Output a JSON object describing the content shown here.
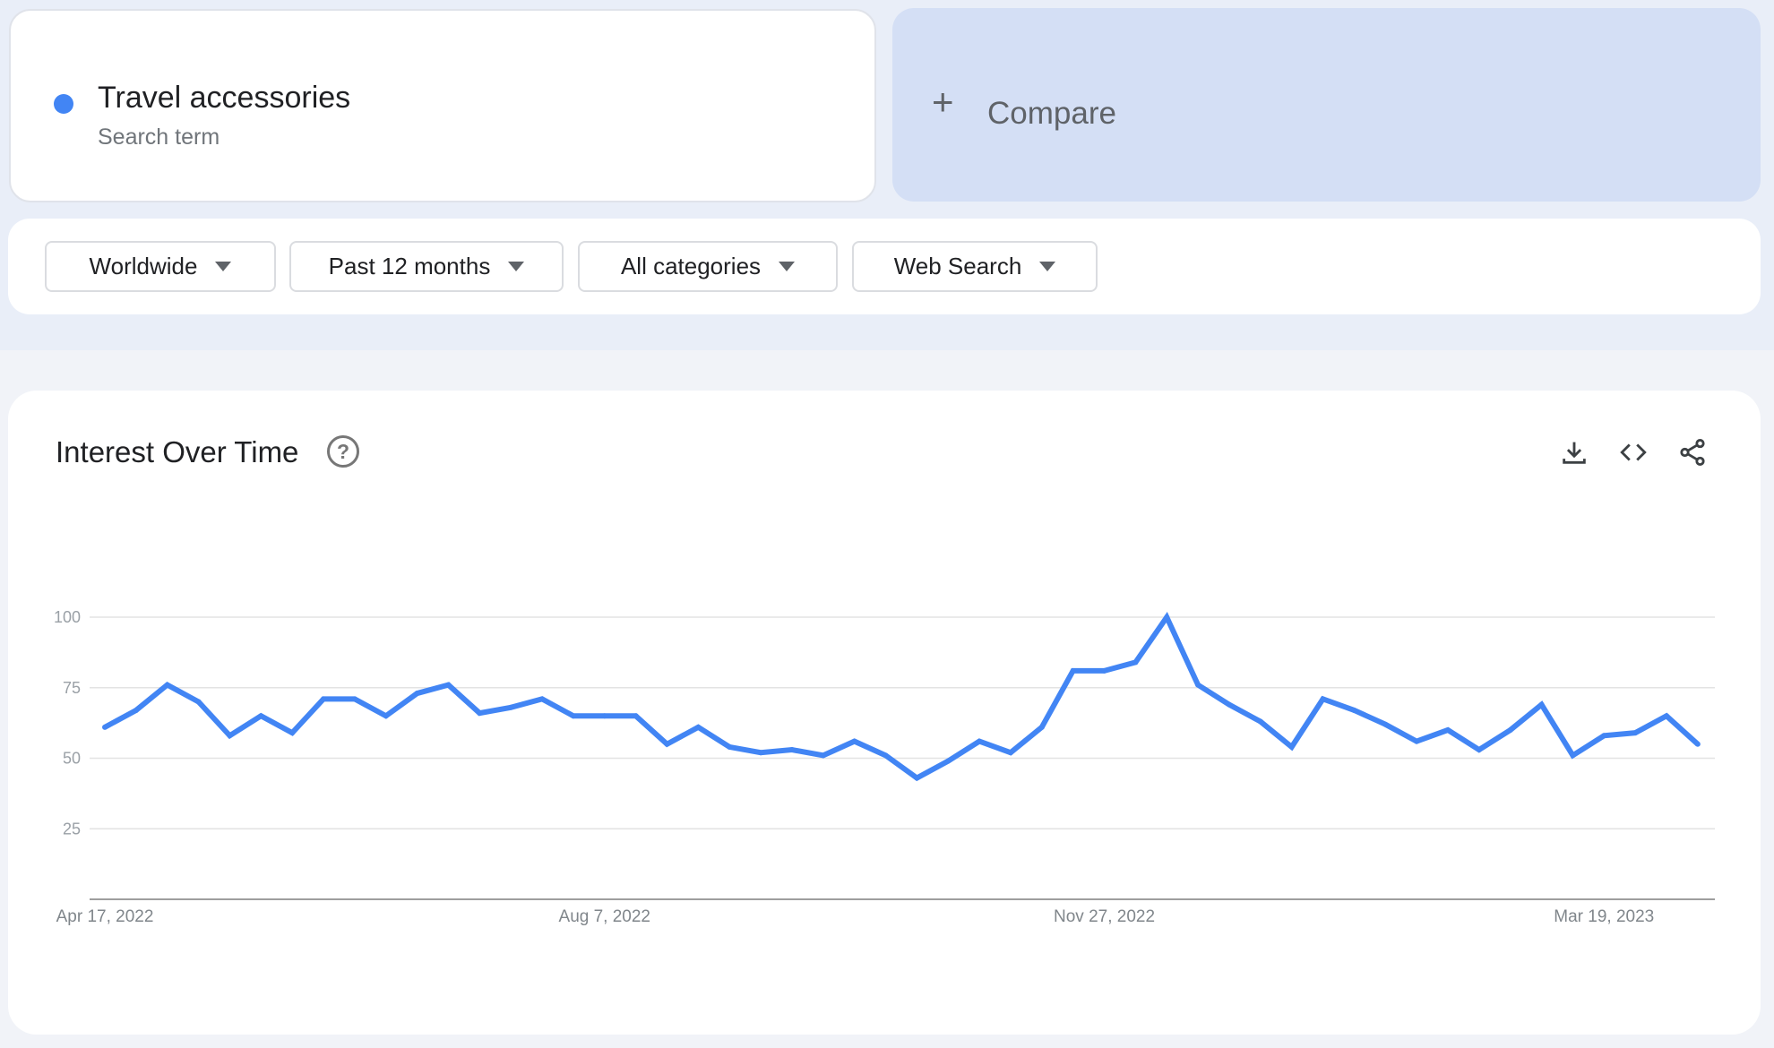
{
  "search_term": {
    "label": "Travel accessories",
    "type": "Search term",
    "color": "#4285f4"
  },
  "compare": {
    "icon": "plus-icon",
    "label": "Compare"
  },
  "filters": [
    {
      "label": "Worldwide"
    },
    {
      "label": "Past 12 months"
    },
    {
      "label": "All categories"
    },
    {
      "label": "Web Search"
    }
  ],
  "panel": {
    "title": "Interest Over Time",
    "help_icon": "help-circle-icon",
    "actions": [
      "download-icon",
      "embed-code-icon",
      "share-icon"
    ]
  },
  "chart_data": {
    "type": "line",
    "title": "",
    "xlabel": "",
    "ylabel": "",
    "ylim": [
      0,
      100
    ],
    "yticks": [
      "25",
      "50",
      "75",
      "100"
    ],
    "xticks": [
      {
        "label": "Apr 17, 2022",
        "index": 0
      },
      {
        "label": "Aug 7, 2022",
        "index": 16
      },
      {
        "label": "Nov 27, 2022",
        "index": 32
      },
      {
        "label": "Mar 19, 2023",
        "index": 48
      }
    ],
    "grid": true,
    "series": [
      {
        "color": "#4285f4",
        "values": [
          61,
          67,
          76,
          70,
          58,
          65,
          59,
          71,
          71,
          65,
          73,
          76,
          66,
          68,
          71,
          65,
          65,
          65,
          55,
          61,
          54,
          52,
          53,
          51,
          56,
          51,
          43,
          49,
          56,
          52,
          61,
          81,
          81,
          84,
          100,
          76,
          69,
          63,
          54,
          71,
          67,
          62,
          56,
          60,
          53,
          60,
          69,
          51,
          58,
          59,
          65,
          55
        ]
      }
    ]
  }
}
